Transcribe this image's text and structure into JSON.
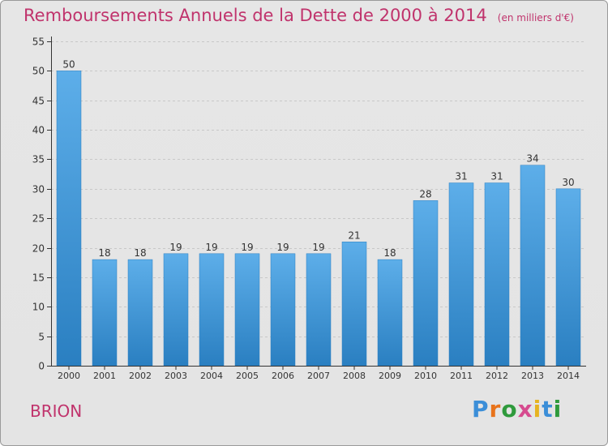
{
  "colors": {
    "title": "#c0336c",
    "bar_light": "#5daee9",
    "bar_dark": "#2a7fc1",
    "axis": "#333333",
    "grid": "#c8c8c8",
    "text": "#333333"
  },
  "header": {
    "title": "Remboursements Annuels de la Dette de 2000 à 2014",
    "unit": "(en milliers d'€)"
  },
  "footer": {
    "commune": "BRION",
    "brand": "Proxiti",
    "brand_colors": [
      "#3b8ed8",
      "#e8731b",
      "#2f9a3c",
      "#d64b8f",
      "#e6b321",
      "#3b8ed8",
      "#2f9a3c"
    ]
  },
  "chart_data": {
    "type": "bar",
    "title": "Remboursements Annuels de la Dette de 2000 à 2014",
    "xlabel": "",
    "ylabel": "",
    "categories": [
      "2000",
      "2001",
      "2002",
      "2003",
      "2004",
      "2005",
      "2006",
      "2007",
      "2008",
      "2009",
      "2010",
      "2011",
      "2012",
      "2013",
      "2014"
    ],
    "values": [
      50,
      18,
      18,
      19,
      19,
      19,
      19,
      19,
      21,
      18,
      28,
      31,
      31,
      34,
      30
    ],
    "ylim": [
      0,
      55
    ],
    "yticks": [
      0,
      5,
      10,
      15,
      20,
      25,
      30,
      35,
      40,
      45,
      50,
      55
    ],
    "grid": true,
    "data_labels": true
  }
}
